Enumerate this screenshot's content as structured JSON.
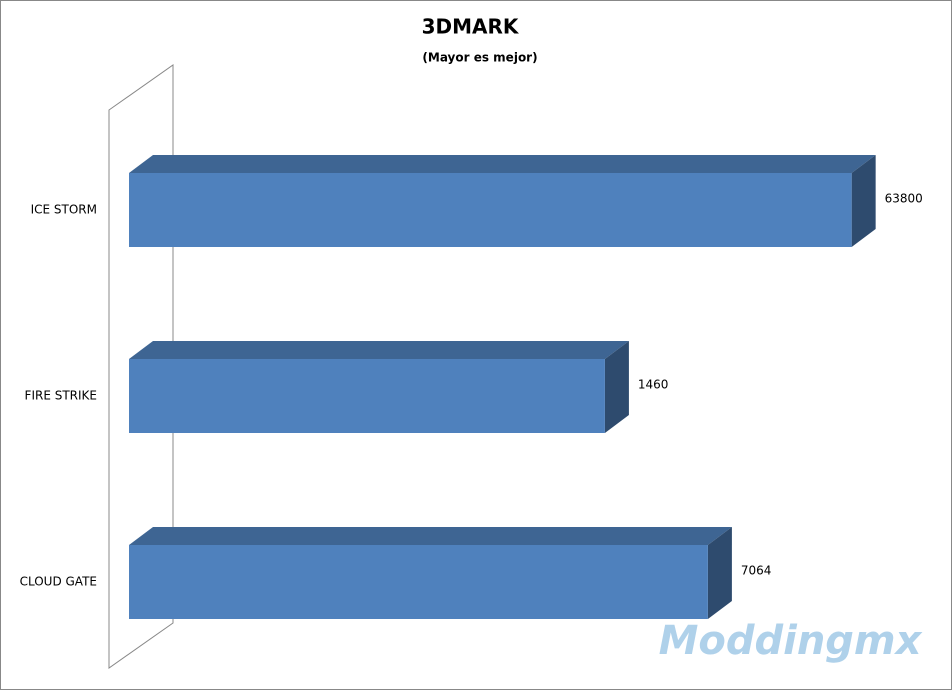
{
  "chart_data": {
    "type": "bar3d_horizontal",
    "title": "3DMARK",
    "subtitle": "(Mayor es mejor)",
    "categories": [
      "ICE STORM",
      "FIRE STRIKE",
      "CLOUD GATE"
    ],
    "values": [
      63800,
      1460,
      7064
    ],
    "color": "#4f81bd",
    "xlim": [
      1,
      100000
    ],
    "log_scale": true,
    "grid": false,
    "watermark": "Moddingmx"
  }
}
